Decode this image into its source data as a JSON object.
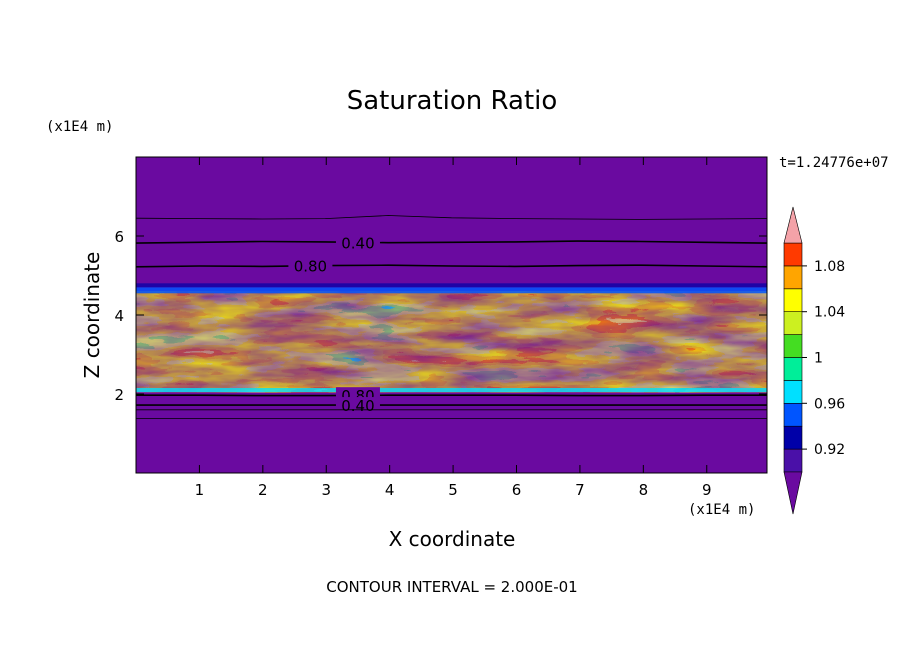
{
  "chart_data": {
    "type": "heatmap",
    "title": "Saturation Ratio",
    "xlabel": "X coordinate",
    "ylabel": "Z coordinate",
    "x_units": "(x1E4 m)",
    "y_units": "(x1E4 m)",
    "time_label": "t=1.24776e+07",
    "footnote": "CONTOUR INTERVAL = 2.000E-01",
    "xlim": [
      0,
      9.95
    ],
    "ylim": [
      0,
      8.0
    ],
    "x_ticks": [
      1,
      2,
      3,
      4,
      5,
      6,
      7,
      8,
      9
    ],
    "y_ticks": [
      2,
      4,
      6
    ],
    "x_tick_labels": [
      "1",
      "2",
      "3",
      "4",
      "5",
      "6",
      "7",
      "8",
      "9"
    ],
    "y_tick_labels": [
      "2",
      "4",
      "6"
    ],
    "colorbar": {
      "levels": [
        0.9,
        0.92,
        0.94,
        0.96,
        0.98,
        1.0,
        1.02,
        1.04,
        1.06,
        1.08,
        1.1
      ],
      "tick_values": [
        0.92,
        0.96,
        1.0,
        1.04,
        1.08
      ],
      "tick_labels": [
        "0.92",
        "0.96",
        "1",
        "1.04",
        "1.08"
      ],
      "colors": [
        "#4a10a8",
        "#0000a8",
        "#0055ff",
        "#00e0ff",
        "#00ee99",
        "#44dd22",
        "#ccf020",
        "#ffff00",
        "#ffa500",
        "#ff3a00",
        "#ff1f1f"
      ],
      "under_color": "#6a0aa0",
      "over_color": "#f4a2a8"
    },
    "background_color": "#6a0aa0",
    "layers": [
      {
        "z_bottom": 0.0,
        "z_top": 2.05,
        "value": 0.4,
        "note": "dry lower layer"
      },
      {
        "z_bottom": 2.05,
        "z_top": 4.6,
        "value_range": [
          0.92,
          1.08
        ],
        "note": "moist saturated layer"
      },
      {
        "z_bottom": 4.6,
        "z_top": 8.0,
        "value": 0.4,
        "note": "dry upper layer"
      }
    ],
    "contours": [
      {
        "level": 0.4,
        "label": "0.40",
        "label_x": 3.5,
        "z_profile": [
          5.82,
          5.84,
          5.86,
          5.85,
          5.83,
          5.84,
          5.85,
          5.87,
          5.86,
          5.84,
          5.82
        ]
      },
      {
        "level": 0.8,
        "label": "0.80",
        "label_x": 2.75,
        "z_profile": [
          5.22,
          5.24,
          5.23,
          5.25,
          5.26,
          5.24,
          5.23,
          5.25,
          5.26,
          5.24,
          5.22
        ]
      },
      {
        "level": 0.8,
        "label": "0.80",
        "label_x": 3.5,
        "z_profile": [
          1.97,
          1.97,
          1.96,
          1.96,
          1.97,
          1.97,
          1.97,
          1.96,
          1.96,
          1.97,
          1.97
        ]
      },
      {
        "level": 0.4,
        "label": "0.40",
        "label_x": 3.5,
        "z_profile": [
          1.72,
          1.72,
          1.72,
          1.72,
          1.72,
          1.72,
          1.72,
          1.72,
          1.72,
          1.72,
          1.72
        ]
      },
      {
        "level": 0.2,
        "label": "",
        "label_x": null,
        "z_profile": [
          6.45,
          6.44,
          6.43,
          6.44,
          6.52,
          6.46,
          6.44,
          6.43,
          6.42,
          6.43,
          6.44
        ]
      },
      {
        "level": 0.2,
        "label": "",
        "label_x": null,
        "z_profile": [
          1.6,
          1.6,
          1.6,
          1.6,
          1.6,
          1.6,
          1.6,
          1.6,
          1.6,
          1.6,
          1.6
        ]
      },
      {
        "level": 0.2,
        "label": "",
        "label_x": null,
        "z_profile": [
          1.38,
          1.38,
          1.38,
          1.38,
          1.38,
          1.38,
          1.38,
          1.38,
          1.38,
          1.38,
          1.38
        ]
      }
    ]
  }
}
